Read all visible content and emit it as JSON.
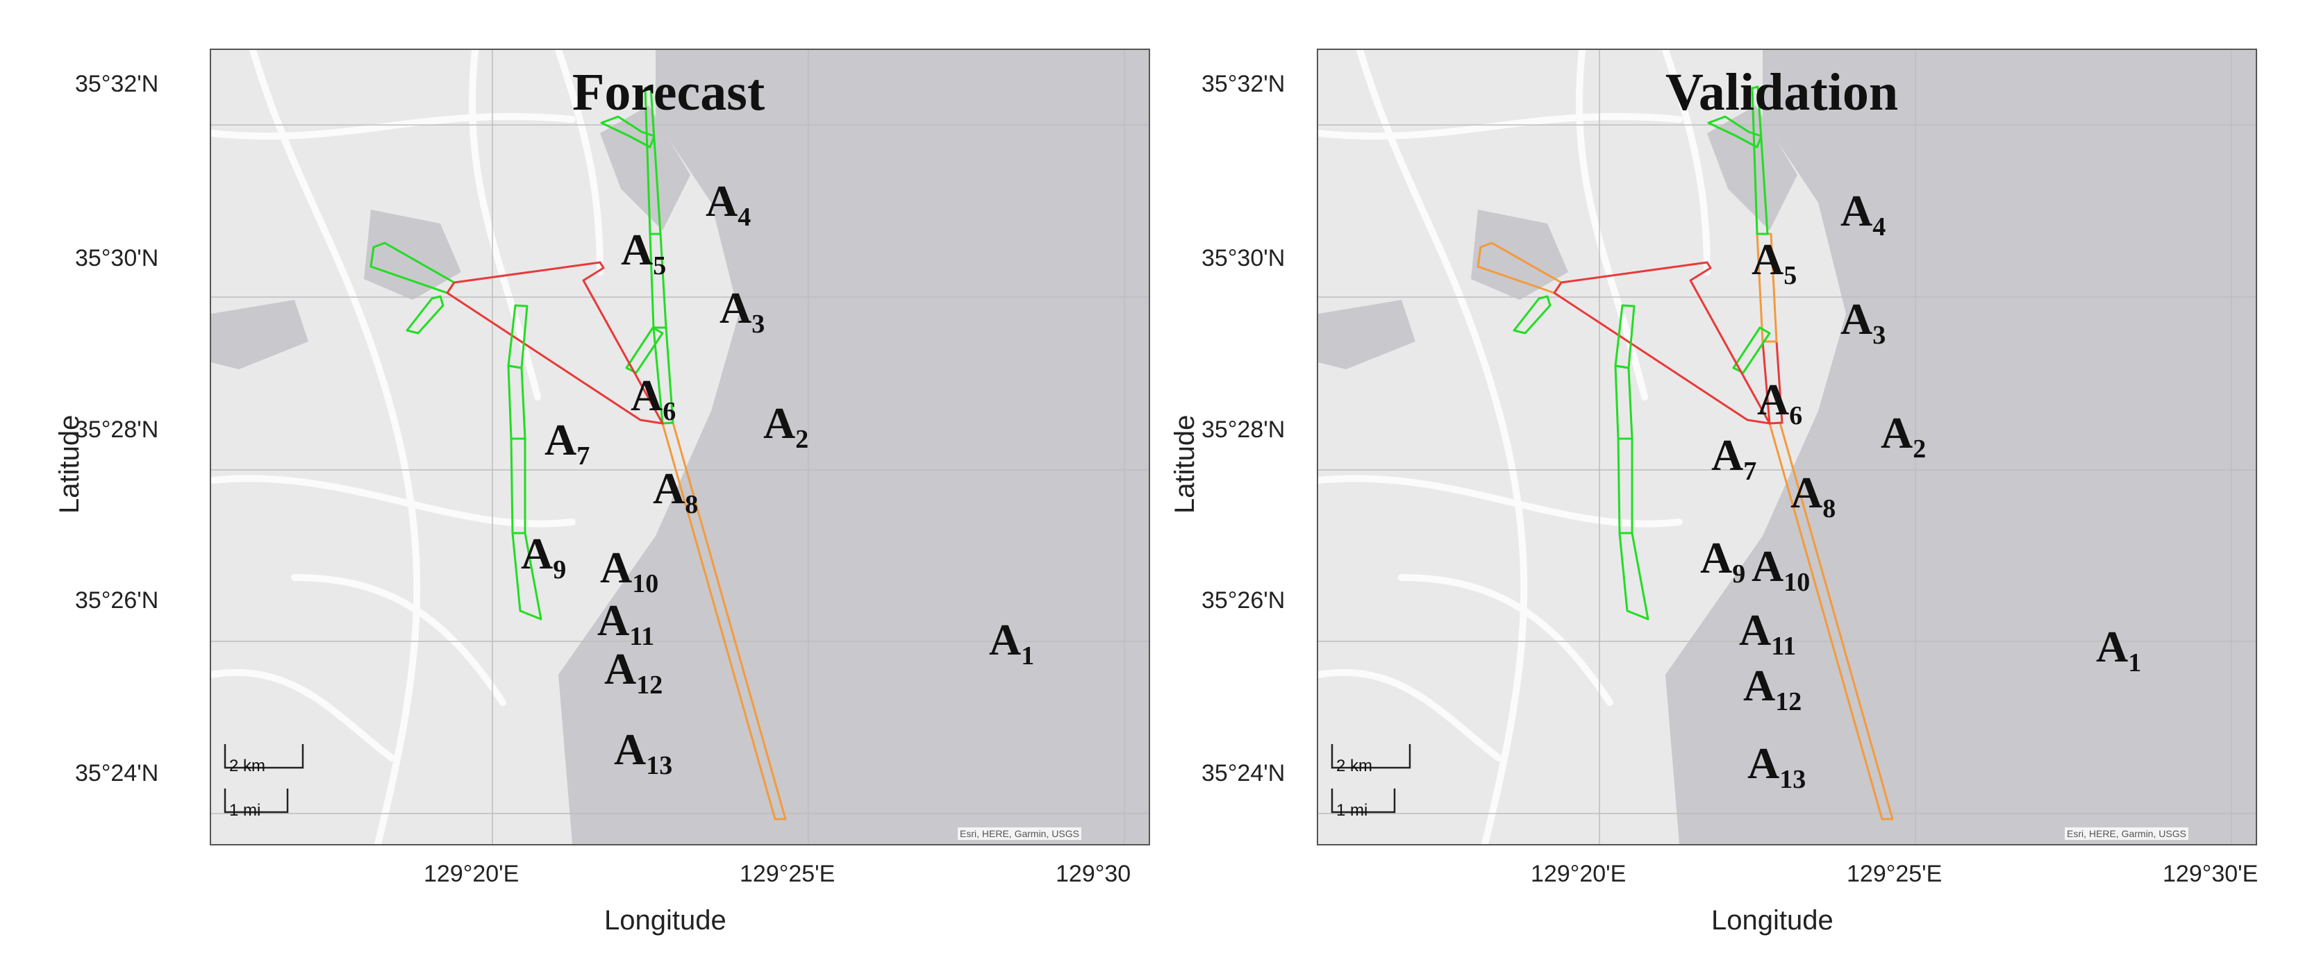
{
  "colors": {
    "land": "#e9e9ea",
    "water": "#c9c8cc",
    "road": "#fbfbfb",
    "status_good": "#22dd22",
    "status_moderate": "#f39a3d",
    "status_poor": "#e83a3a"
  },
  "map": {
    "lat_ticks": [
      "35°32'N",
      "35°30'N",
      "35°28'N",
      "35°26'N",
      "35°24'N"
    ],
    "xlabel": "Longitude",
    "ylabel": "Latitude",
    "scale_km": "2 km",
    "scale_mi": "1 mi",
    "attribution": "Esri, HERE, Garmin, USGS"
  },
  "panels": [
    {
      "title": "Forecast",
      "lon_ticks": [
        "129°20'E",
        "129°25'E",
        "129°30"
      ],
      "segments": [
        {
          "id": "A1",
          "sub": "1",
          "status": "moderate"
        },
        {
          "id": "A2",
          "sub": "2",
          "status": "good"
        },
        {
          "id": "A3",
          "sub": "3",
          "status": "good"
        },
        {
          "id": "A4",
          "sub": "4",
          "status": "good"
        },
        {
          "id": "A5",
          "sub": "5",
          "status": "good"
        },
        {
          "id": "A6",
          "sub": "6",
          "status": "good"
        },
        {
          "id": "A7",
          "sub": "7",
          "status": "good"
        },
        {
          "id": "A8",
          "sub": "8",
          "status": "poor"
        },
        {
          "id": "A9",
          "sub": "9",
          "status": "good"
        },
        {
          "id": "A10",
          "sub": "10",
          "status": "good"
        },
        {
          "id": "A11",
          "sub": "11",
          "status": "good"
        },
        {
          "id": "A12",
          "sub": "12",
          "status": "good"
        },
        {
          "id": "A13",
          "sub": "13",
          "status": "good"
        }
      ]
    },
    {
      "title": "Validation",
      "lon_ticks": [
        "129°20'E",
        "129°25'E",
        "129°30'E"
      ],
      "segments": [
        {
          "id": "A1",
          "sub": "1",
          "status": "moderate"
        },
        {
          "id": "A2",
          "sub": "2",
          "status": "poor"
        },
        {
          "id": "A3",
          "sub": "3",
          "status": "moderate"
        },
        {
          "id": "A4",
          "sub": "4",
          "status": "good"
        },
        {
          "id": "A5",
          "sub": "5",
          "status": "good"
        },
        {
          "id": "A6",
          "sub": "6",
          "status": "good"
        },
        {
          "id": "A7",
          "sub": "7",
          "status": "moderate"
        },
        {
          "id": "A8",
          "sub": "8",
          "status": "poor"
        },
        {
          "id": "A9",
          "sub": "9",
          "status": "good"
        },
        {
          "id": "A10",
          "sub": "10",
          "status": "good"
        },
        {
          "id": "A11",
          "sub": "11",
          "status": "good"
        },
        {
          "id": "A12",
          "sub": "12",
          "status": "good"
        },
        {
          "id": "A13",
          "sub": "13",
          "status": "good"
        }
      ]
    }
  ]
}
